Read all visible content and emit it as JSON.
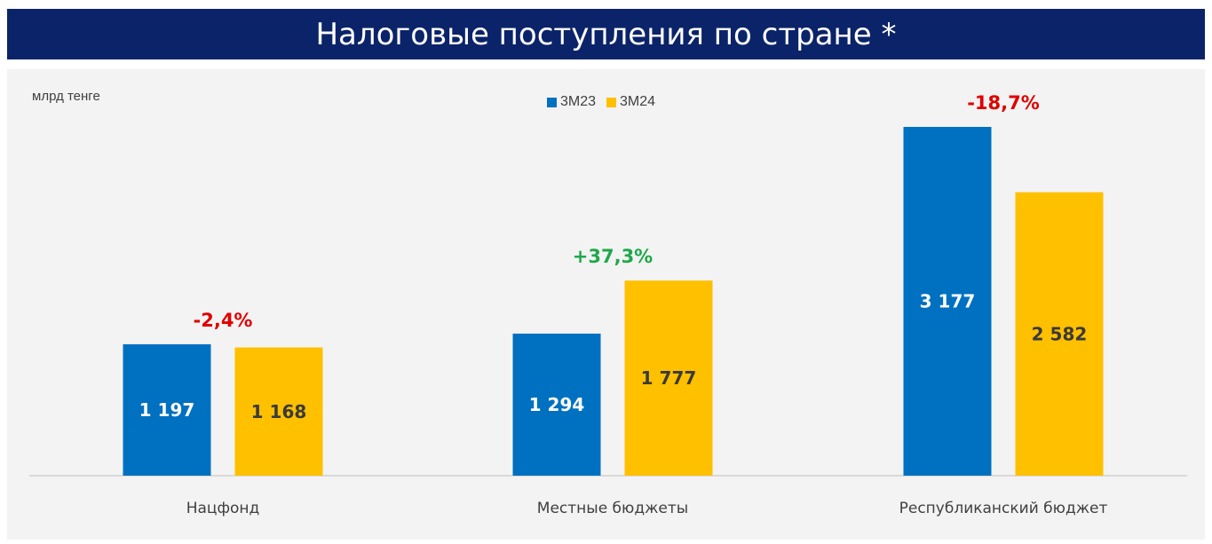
{
  "title": "Налоговые поступления по стране *",
  "unit_label": "млрд тенге",
  "colors": {
    "header_bg": "#0b2369",
    "panel_bg": "#f3f3f3",
    "series_3m23": "#0070c0",
    "series_3m24": "#ffc000",
    "negative_change": "#e00000",
    "positive_change": "#1fa84a"
  },
  "chart_data": {
    "type": "bar",
    "title": "Налоговые поступления по стране *",
    "ylabel": "млрд тенге",
    "xlabel": "",
    "categories": [
      "Нацфонд",
      "Местные бюджеты",
      "Республиканский бюджет"
    ],
    "series": [
      {
        "name": "3М23",
        "values": [
          1197,
          1294,
          3177
        ],
        "labels": [
          "1 197",
          "1 294",
          "3 177"
        ]
      },
      {
        "name": "3М24",
        "values": [
          1168,
          1777,
          2582
        ],
        "labels": [
          "1 168",
          "1 777",
          "2 582"
        ]
      }
    ],
    "changes": [
      "-2,4%",
      "+37,3%",
      "-18,7%"
    ],
    "change_signs": [
      "negative",
      "positive",
      "negative"
    ],
    "ylim": [
      0,
      3400
    ],
    "legend": "top-center",
    "grid": false
  }
}
